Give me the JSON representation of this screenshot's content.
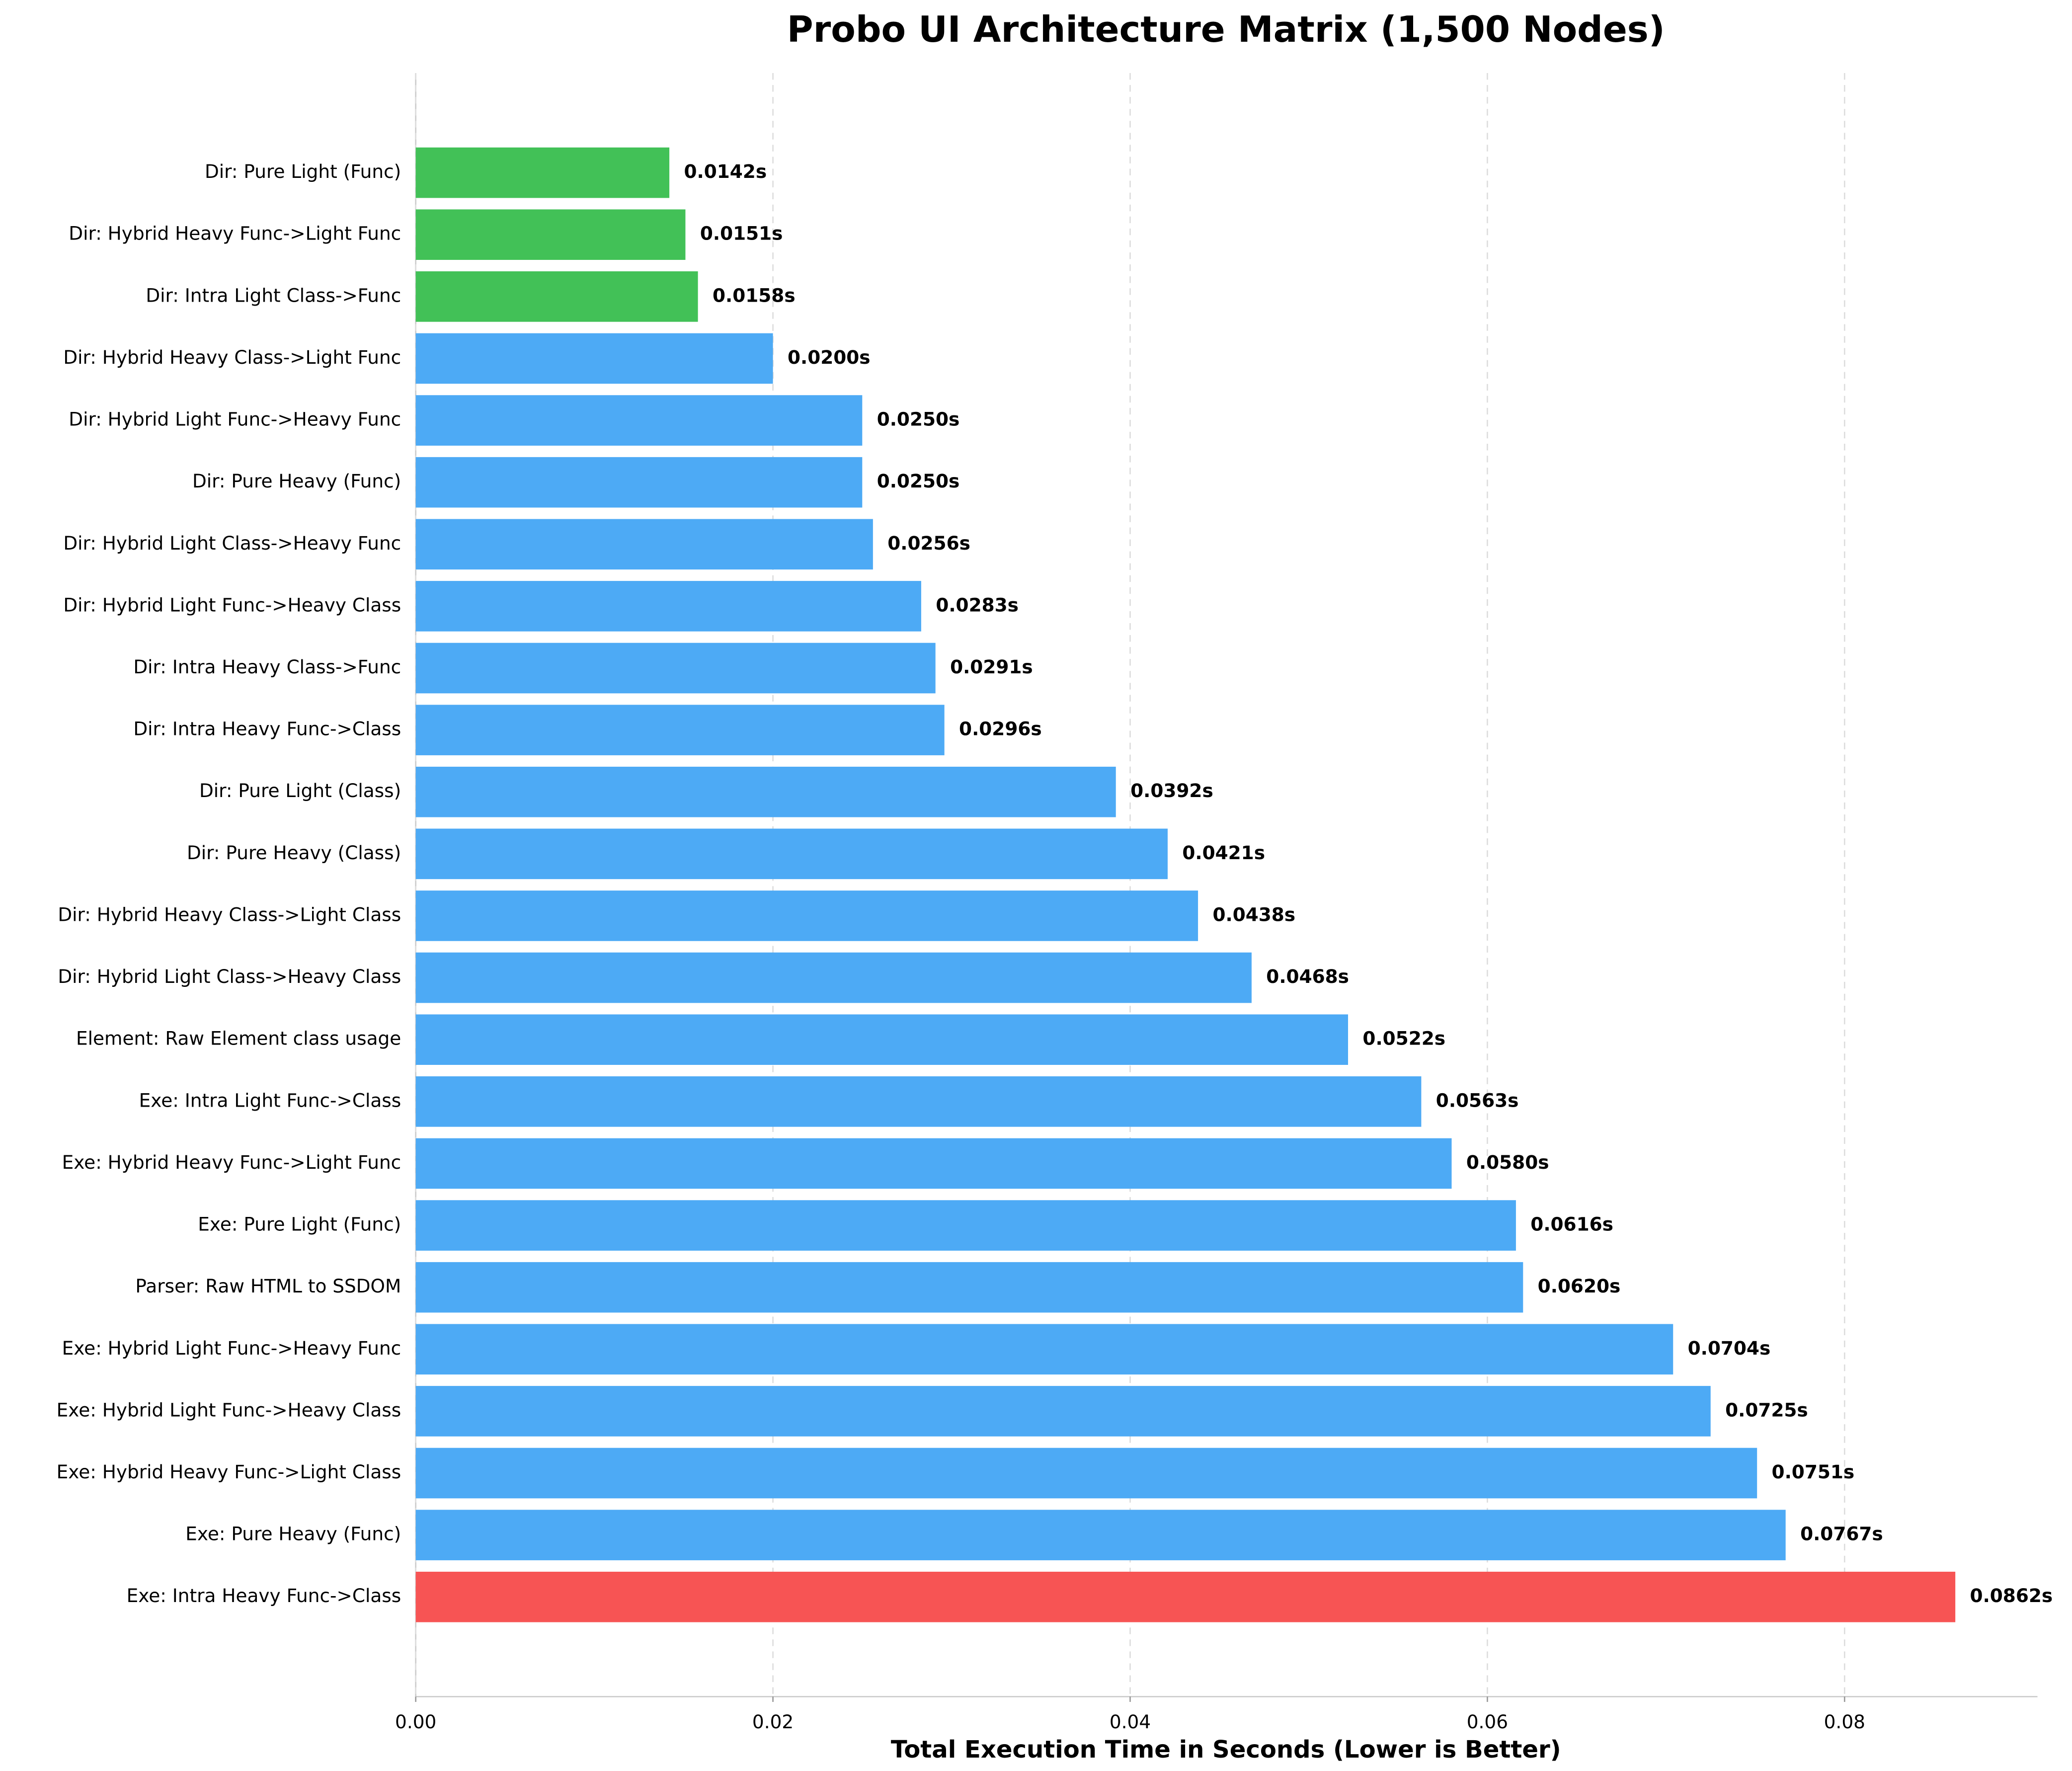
{
  "chart_data": {
    "type": "bar",
    "orientation": "horizontal",
    "title": "Probo UI Architecture Matrix (1,500 Nodes)",
    "x_label": "Total Execution Time in Seconds (Lower is Better)",
    "categories": [
      "Dir: Pure Light (Func)",
      "Dir: Hybrid Heavy Func->Light Func",
      "Dir: Intra Light Class->Func",
      "Dir: Hybrid Heavy Class->Light Func",
      "Dir: Hybrid Light Func->Heavy Func",
      "Dir: Pure Heavy (Func)",
      "Dir: Hybrid Light Class->Heavy Func",
      "Dir: Hybrid Light Func->Heavy Class",
      "Dir: Intra Heavy Class->Func",
      "Dir: Intra Heavy Func->Class",
      "Dir: Pure Light (Class)",
      "Dir: Pure Heavy (Class)",
      "Dir: Hybrid Heavy Class->Light Class",
      "Dir: Hybrid Light Class->Heavy Class",
      "Element: Raw Element class usage",
      "Exe: Intra Light Func->Class",
      "Exe: Hybrid Heavy Func->Light Func",
      "Exe: Pure Light (Func)",
      "Parser: Raw HTML to SSDOM",
      "Exe: Hybrid Light Func->Heavy Func",
      "Exe: Hybrid Light Func->Heavy Class",
      "Exe: Hybrid Heavy Func->Light Class",
      "Exe: Pure Heavy (Func)",
      "Exe: Intra Heavy Func->Class"
    ],
    "values": [
      0.0142,
      0.0151,
      0.0158,
      0.02,
      0.025,
      0.025,
      0.0256,
      0.0283,
      0.0291,
      0.0296,
      0.0392,
      0.0421,
      0.0438,
      0.0468,
      0.0522,
      0.0563,
      0.058,
      0.0616,
      0.062,
      0.0704,
      0.0725,
      0.0751,
      0.0767,
      0.0862
    ],
    "value_labels": [
      "0.0142s",
      "0.0151s",
      "0.0158s",
      "0.0200s",
      "0.0250s",
      "0.0250s",
      "0.0256s",
      "0.0283s",
      "0.0291s",
      "0.0296s",
      "0.0392s",
      "0.0421s",
      "0.0438s",
      "0.0468s",
      "0.0522s",
      "0.0563s",
      "0.0580s",
      "0.0616s",
      "0.0620s",
      "0.0704s",
      "0.0725s",
      "0.0751s",
      "0.0767s",
      "0.0862s"
    ],
    "colors": [
      "#42c157",
      "#42c157",
      "#42c157",
      "#4daaf5",
      "#4daaf5",
      "#4daaf5",
      "#4daaf5",
      "#4daaf5",
      "#4daaf5",
      "#4daaf5",
      "#4daaf5",
      "#4daaf5",
      "#4daaf5",
      "#4daaf5",
      "#4daaf5",
      "#4daaf5",
      "#4daaf5",
      "#4daaf5",
      "#4daaf5",
      "#4daaf5",
      "#4daaf5",
      "#4daaf5",
      "#4daaf5",
      "#f75454"
    ],
    "xlim": [
      0,
      0.0908
    ],
    "xticks": [
      {
        "value": 0,
        "label": "0.00"
      },
      0.02,
      0.04,
      0.06,
      0.08
    ],
    "grid": true
  }
}
